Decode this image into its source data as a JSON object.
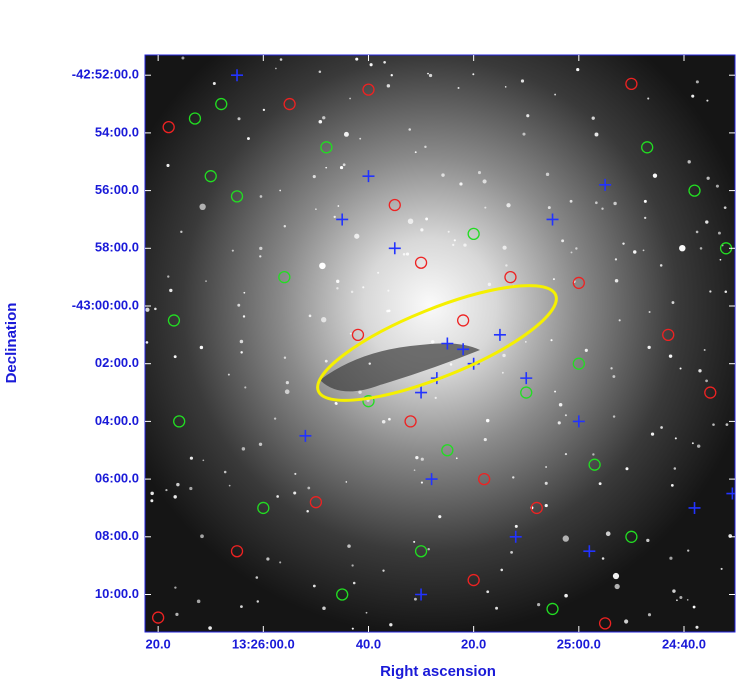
{
  "chart_data": {
    "type": "scatter",
    "x_label": "Right ascension",
    "y_label": "Declination",
    "xlim": [
      1582.5,
      1470.3
    ],
    "ylim": [
      -2591.3,
      -2571.3
    ],
    "xticks": [
      {
        "value": 1580,
        "label": "20.0"
      },
      {
        "value": 1560,
        "label": "13:26:00.0"
      },
      {
        "value": 1540,
        "label": "40.0"
      },
      {
        "value": 1520,
        "label": "20.0"
      },
      {
        "value": 1500,
        "label": "25:00.0"
      },
      {
        "value": 1480,
        "label": "24:40.0"
      }
    ],
    "yticks": [
      {
        "value": -2572,
        "label": "-42:52:00.0"
      },
      {
        "value": -2574,
        "label": "54:00.0"
      },
      {
        "value": -2576,
        "label": "56:00.0"
      },
      {
        "value": -2578,
        "label": "58:00.0"
      },
      {
        "value": -2580,
        "label": "-43:00:00.0"
      },
      {
        "value": -2582,
        "label": "02:00.0"
      },
      {
        "value": -2584,
        "label": "04:00.0"
      },
      {
        "value": -2586,
        "label": "06:00.0"
      },
      {
        "value": -2588,
        "label": "08:00.0"
      },
      {
        "value": -2590,
        "label": "10:00.0"
      }
    ],
    "series": [
      {
        "color": "#22dd22",
        "marker": "circle",
        "x": [
          1573,
          1568,
          1565,
          1570,
          1577,
          1556,
          1540,
          1525,
          1510,
          1500,
          1478,
          1472,
          1560,
          1545,
          1530,
          1505,
          1490,
          1520,
          1548,
          1487,
          1576,
          1497
        ],
        "values": [
          -2573.5,
          -2573,
          -2576.2,
          -2575.5,
          -2580.5,
          -2579,
          -2583.3,
          -2585,
          -2583,
          -2582,
          -2576,
          -2578,
          -2587,
          -2590,
          -2588.5,
          -2590.5,
          -2588,
          -2577.5,
          -2574.5,
          -2574.5,
          -2584,
          -2585.5
        ]
      },
      {
        "color": "#ee2222",
        "marker": "circle",
        "x": [
          1578,
          1555,
          1535,
          1530,
          1522,
          1513,
          1542,
          1532,
          1518,
          1500,
          1483,
          1475,
          1565,
          1550,
          1520,
          1495,
          1540,
          1490,
          1580,
          1508
        ],
        "values": [
          -2573.8,
          -2573,
          -2576.5,
          -2578.5,
          -2580.5,
          -2579,
          -2581,
          -2584,
          -2586,
          -2579.2,
          -2581,
          -2583,
          -2588.5,
          -2586.8,
          -2589.5,
          -2591,
          -2572.5,
          -2572.3,
          -2590.8,
          -2587
        ]
      },
      {
        "color": "#2233ff",
        "marker": "cross",
        "x": [
          1525,
          1522,
          1520,
          1527,
          1530,
          1515,
          1510,
          1535,
          1505,
          1528,
          1500,
          1545,
          1512,
          1498,
          1478,
          1552,
          1540,
          1495,
          1530,
          1565,
          1470.8
        ],
        "values": [
          -2581.3,
          -2581.5,
          -2582,
          -2582.5,
          -2583,
          -2581,
          -2582.5,
          -2578,
          -2577,
          -2586,
          -2584,
          -2577,
          -2588,
          -2588.5,
          -2587,
          -2584.5,
          -2575.5,
          -2575.8,
          -2590,
          -2572,
          -2586.5
        ]
      }
    ]
  }
}
